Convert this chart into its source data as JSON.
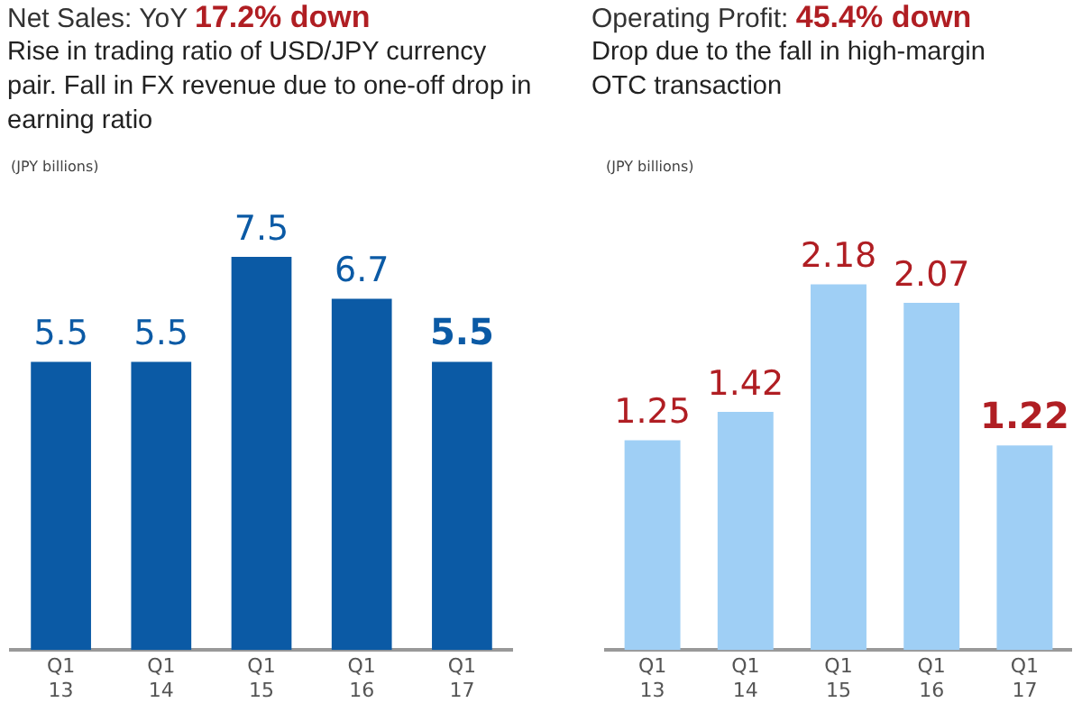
{
  "chart_data": [
    {
      "type": "bar",
      "title": "Net Sales: YoY 17.2% down",
      "subtitle": "Rise in trading ratio of USD/JPY currency pair. Fall in FX revenue due to one-off drop in earning ratio",
      "ylabel": "(JPY billions)",
      "categories": [
        "Q1\n13",
        "Q1\n14",
        "Q1\n15",
        "Q1\n16",
        "Q1\n17"
      ],
      "values": [
        5.5,
        5.5,
        7.5,
        6.7,
        5.5
      ],
      "color": "#0b5aa5",
      "data_labels": true,
      "grid": false,
      "legend": false,
      "tick_labels": "x"
    },
    {
      "type": "bar",
      "title": "Operating Profit: 45.4% down",
      "subtitle": "Drop due to the fall in high-margin OTC transaction",
      "ylabel": "(JPY billions)",
      "categories": [
        "Q1\n13",
        "Q1\n14",
        "Q1\n15",
        "Q1\n16",
        "Q1\n17"
      ],
      "values": [
        1.25,
        1.42,
        2.18,
        2.07,
        1.22
      ],
      "color": "#9fcff5",
      "data_labels": true,
      "grid": false,
      "legend": false,
      "tick_labels": "x"
    }
  ]
}
